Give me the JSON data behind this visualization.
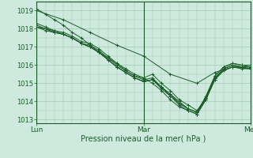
{
  "title": "",
  "xlabel": "Pression niveau de la mer( hPa )",
  "ylim": [
    1012.8,
    1019.5
  ],
  "xlim": [
    0,
    48
  ],
  "yticks": [
    1013,
    1014,
    1015,
    1016,
    1017,
    1018,
    1019
  ],
  "xtick_positions": [
    0,
    24,
    48
  ],
  "xtick_labels": [
    "Lun",
    "Mar",
    "Mer"
  ],
  "bg_color": "#ceeade",
  "grid_color": "#9fc8b0",
  "line_color": "#1a5c28",
  "series": [
    [
      0,
      1019.1,
      2,
      1018.8,
      4,
      1018.5,
      6,
      1018.2,
      8,
      1017.8,
      10,
      1017.5,
      12,
      1017.1,
      14,
      1016.8,
      16,
      1016.4,
      18,
      1016.1,
      20,
      1015.7,
      22,
      1015.4,
      24,
      1015.3,
      26,
      1015.0,
      28,
      1014.6,
      30,
      1014.1,
      32,
      1013.7,
      34,
      1013.5,
      36,
      1013.3,
      38,
      1014.1,
      40,
      1015.2,
      42,
      1015.7,
      44,
      1015.9,
      46,
      1015.8,
      48,
      1015.8
    ],
    [
      0,
      1018.3,
      2,
      1018.1,
      4,
      1017.9,
      6,
      1017.7,
      8,
      1017.5,
      10,
      1017.2,
      12,
      1017.0,
      14,
      1016.7,
      16,
      1016.4,
      18,
      1016.0,
      20,
      1015.7,
      22,
      1015.4,
      24,
      1015.2,
      26,
      1015.3,
      28,
      1014.8,
      30,
      1014.3,
      32,
      1013.9,
      34,
      1013.6,
      36,
      1013.4,
      38,
      1014.3,
      40,
      1015.4,
      42,
      1015.9,
      44,
      1016.1,
      46,
      1016.0,
      48,
      1015.9
    ],
    [
      0,
      1018.2,
      2,
      1018.0,
      4,
      1017.8,
      6,
      1017.7,
      8,
      1017.5,
      10,
      1017.2,
      12,
      1017.0,
      14,
      1016.7,
      16,
      1016.3,
      18,
      1015.9,
      20,
      1015.6,
      22,
      1015.3,
      24,
      1015.1,
      26,
      1015.2,
      28,
      1014.7,
      30,
      1014.3,
      32,
      1013.8,
      34,
      1013.5,
      36,
      1013.3,
      38,
      1014.1,
      40,
      1015.2,
      42,
      1015.8,
      44,
      1016.0,
      46,
      1015.9,
      48,
      1015.9
    ],
    [
      0,
      1018.1,
      2,
      1018.0,
      4,
      1017.8,
      6,
      1017.7,
      8,
      1017.5,
      10,
      1017.2,
      12,
      1017.1,
      14,
      1016.7,
      16,
      1016.3,
      18,
      1015.9,
      20,
      1015.6,
      22,
      1015.3,
      24,
      1015.1,
      26,
      1015.2,
      28,
      1014.8,
      30,
      1014.4,
      32,
      1014.0,
      34,
      1013.6,
      36,
      1013.4,
      38,
      1014.2,
      40,
      1015.3,
      42,
      1015.8,
      44,
      1016.0,
      46,
      1015.9,
      48,
      1015.9
    ],
    [
      0,
      1018.1,
      2,
      1017.9,
      4,
      1017.8,
      6,
      1017.7,
      8,
      1017.5,
      10,
      1017.2,
      12,
      1017.0,
      14,
      1016.7,
      16,
      1016.3,
      18,
      1015.9,
      20,
      1015.6,
      22,
      1015.3,
      24,
      1015.1,
      26,
      1015.2,
      28,
      1014.8,
      30,
      1014.4,
      32,
      1013.9,
      34,
      1013.6,
      36,
      1013.4,
      38,
      1014.2,
      40,
      1015.3,
      42,
      1015.7,
      44,
      1015.9,
      46,
      1015.9,
      48,
      1015.8
    ],
    [
      0,
      1018.1,
      2,
      1018.0,
      4,
      1017.9,
      6,
      1017.8,
      8,
      1017.6,
      10,
      1017.3,
      12,
      1017.2,
      14,
      1016.9,
      16,
      1016.5,
      18,
      1016.1,
      20,
      1015.8,
      22,
      1015.5,
      24,
      1015.3,
      26,
      1015.5,
      28,
      1015.0,
      30,
      1014.6,
      32,
      1014.1,
      34,
      1013.8,
      36,
      1013.5,
      38,
      1014.2,
      40,
      1015.4,
      42,
      1015.9,
      44,
      1016.1,
      46,
      1016.0,
      48,
      1016.0
    ],
    [
      0,
      1019.0,
      6,
      1018.5,
      12,
      1017.8,
      18,
      1017.1,
      24,
      1016.5,
      30,
      1015.5,
      36,
      1015.0,
      40,
      1015.6,
      44,
      1015.9,
      48,
      1015.8
    ]
  ]
}
